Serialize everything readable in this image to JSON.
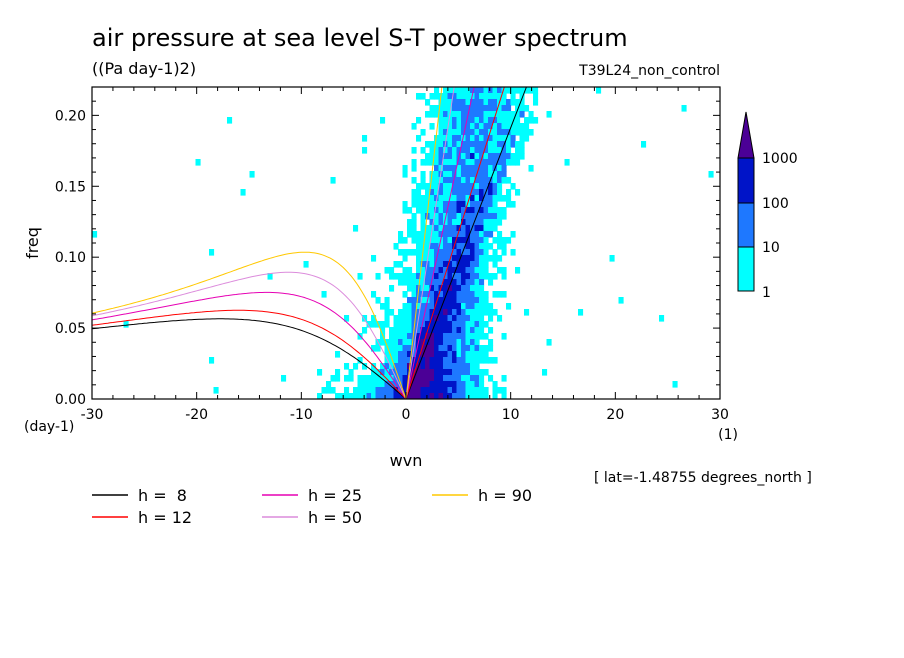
{
  "chart_data": {
    "type": "heatmap",
    "title": "air pressure at sea level S-T power spectrum",
    "units": "((Pa day-1)2)",
    "experiment": "T39L24_non_control",
    "xlabel": "wvn",
    "xunit": "(1)",
    "ylabel": "freq",
    "yunit": "(day-1)",
    "xlim": [
      -30,
      30
    ],
    "ylim": [
      0,
      0.22
    ],
    "xticks": [
      "-30",
      "-20",
      "-10",
      "0",
      "10",
      "20",
      "30"
    ],
    "xtick_values": [
      -30,
      -20,
      -10,
      0,
      10,
      20,
      30
    ],
    "yticks": [
      "0.00",
      "0.05",
      "0.10",
      "0.15",
      "0.20"
    ],
    "ytick_values": [
      0,
      0.05,
      0.1,
      0.15,
      0.2
    ],
    "latitude_note": "[ lat=-1.48755 degrees_north ]",
    "colorbar": {
      "levels": [
        "1",
        "10",
        "100",
        "1000"
      ],
      "colors": [
        "#00ffff",
        "#1e78ff",
        "#0014c8",
        "#4b0096"
      ]
    },
    "dispersion_curves": [
      {
        "label": "h =  8",
        "h": 8,
        "color": "#000000"
      },
      {
        "label": "h = 12",
        "h": 12,
        "color": "#ff0000"
      },
      {
        "label": "h = 25",
        "h": 25,
        "color": "#e600b4"
      },
      {
        "label": "h = 50",
        "h": 50,
        "color": "#dc8cdc"
      },
      {
        "label": "h = 90",
        "h": 90,
        "color": "#ffc800"
      }
    ]
  }
}
